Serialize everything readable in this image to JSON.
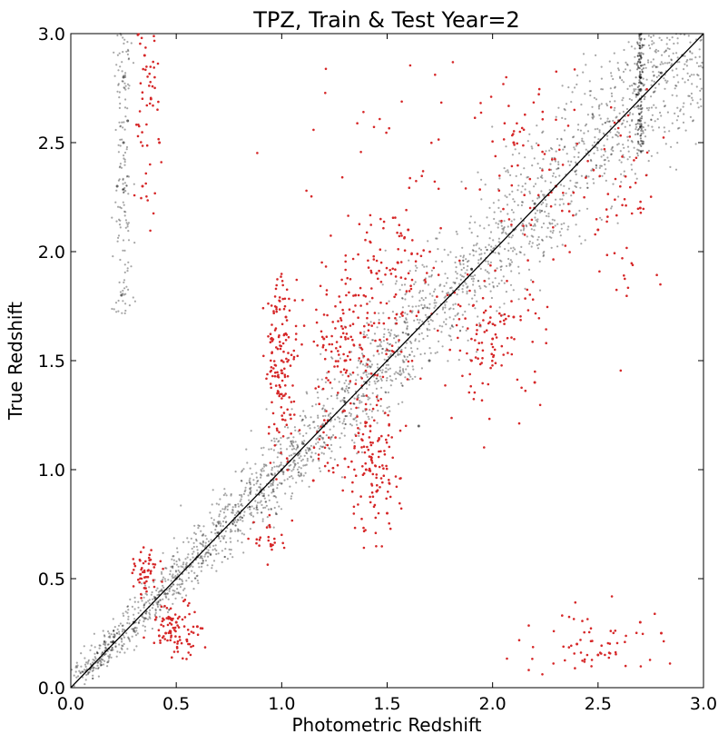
{
  "chart_data": {
    "type": "scatter",
    "title": "TPZ, Train & Test Year=2",
    "xlabel": "Photometric Redshift",
    "ylabel": "True Redshift",
    "xlim": [
      0.0,
      3.0
    ],
    "ylim": [
      0.0,
      3.0
    ],
    "xticks": [
      "0.0",
      "0.5",
      "1.0",
      "1.5",
      "2.0",
      "2.5",
      "3.0"
    ],
    "yticks": [
      "0.0",
      "0.5",
      "1.0",
      "1.5",
      "2.0",
      "2.5",
      "3.0"
    ],
    "grid": false,
    "legend": "none",
    "reference_line": {
      "x": [
        0.0,
        3.0
      ],
      "y": [
        0.0,
        3.0
      ],
      "color": "#000000"
    },
    "series": [
      {
        "color": "#000000",
        "points": [
          [
            0.1,
            0.1
          ],
          [
            0.2,
            0.21
          ],
          [
            0.3,
            0.3
          ],
          [
            0.4,
            0.41
          ],
          [
            0.5,
            0.5
          ],
          [
            0.6,
            0.6
          ],
          [
            0.7,
            0.71
          ],
          [
            0.8,
            0.8
          ],
          [
            0.9,
            0.9
          ],
          [
            1.0,
            1.0
          ],
          [
            1.1,
            1.12
          ],
          [
            1.2,
            1.2
          ],
          [
            1.3,
            1.31
          ],
          [
            1.4,
            1.4
          ],
          [
            1.5,
            1.5
          ],
          [
            1.6,
            1.62
          ],
          [
            1.7,
            1.7
          ],
          [
            1.8,
            1.8
          ],
          [
            1.9,
            1.92
          ],
          [
            2.0,
            2.0
          ],
          [
            2.1,
            2.1
          ],
          [
            2.2,
            2.22
          ],
          [
            2.3,
            2.3
          ],
          [
            2.4,
            2.4
          ],
          [
            2.5,
            2.5
          ],
          [
            2.6,
            2.6
          ],
          [
            2.7,
            2.7
          ],
          [
            2.8,
            2.82
          ],
          [
            2.9,
            2.9
          ],
          [
            0.25,
            2.5
          ],
          [
            0.25,
            2.8
          ],
          [
            0.22,
            2.3
          ],
          [
            0.27,
            2.6
          ],
          [
            0.24,
            1.8
          ],
          [
            2.7,
            2.9
          ],
          [
            2.7,
            2.6
          ],
          [
            2.7,
            2.8
          ],
          [
            1.65,
            1.2
          ],
          [
            1.7,
            1.5
          ]
        ]
      },
      {
        "color": "#d62728",
        "points": [
          [
            0.35,
            2.9
          ],
          [
            0.38,
            2.7
          ],
          [
            0.42,
            2.5
          ],
          [
            0.34,
            2.3
          ],
          [
            0.33,
            0.52
          ],
          [
            0.35,
            0.48
          ],
          [
            0.45,
            0.25
          ],
          [
            0.5,
            0.3
          ],
          [
            0.55,
            0.22
          ],
          [
            0.6,
            0.28
          ],
          [
            0.95,
            1.6
          ],
          [
            1.0,
            1.5
          ],
          [
            0.98,
            1.35
          ],
          [
            1.02,
            1.7
          ],
          [
            1.2,
            1.6
          ],
          [
            1.3,
            1.5
          ],
          [
            1.35,
            1.8
          ],
          [
            1.45,
            1.9
          ],
          [
            1.55,
            1.95
          ],
          [
            1.6,
            2.1
          ],
          [
            1.3,
            1.05
          ],
          [
            1.4,
            1.0
          ],
          [
            1.45,
            0.9
          ],
          [
            1.5,
            0.8
          ],
          [
            1.42,
            1.2
          ],
          [
            1.9,
            1.5
          ],
          [
            2.0,
            1.6
          ],
          [
            2.1,
            1.7
          ],
          [
            2.2,
            1.4
          ],
          [
            2.1,
            2.5
          ],
          [
            2.3,
            2.3
          ],
          [
            2.5,
            2.1
          ],
          [
            2.6,
            2.6
          ],
          [
            2.7,
            2.2
          ],
          [
            2.4,
            0.2
          ],
          [
            2.5,
            0.15
          ],
          [
            2.7,
            0.3
          ],
          [
            2.8,
            0.25
          ],
          [
            0.95,
            0.65
          ],
          [
            1.15,
            0.95
          ]
        ]
      }
    ]
  }
}
